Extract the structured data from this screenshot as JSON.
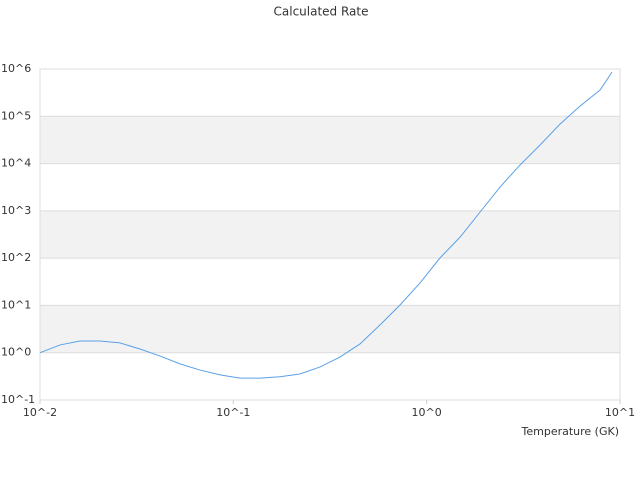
{
  "chart_data": {
    "type": "line",
    "title": "Calculated Rate",
    "x_label": "Temperature (GK)",
    "x_scale": "log",
    "y_scale": "log",
    "xlim": [
      0.01,
      10
    ],
    "ylim": [
      0.1,
      1000000
    ],
    "xticks": [
      {
        "value": 0.01,
        "label": "10^-2"
      },
      {
        "value": 0.1,
        "label": "10^-1"
      },
      {
        "value": 1,
        "label": "10^0"
      },
      {
        "value": 10,
        "label": "10^1"
      }
    ],
    "yticks": [
      {
        "value": 0.1,
        "label": "10^-1"
      },
      {
        "value": 1,
        "label": "10^0"
      },
      {
        "value": 10,
        "label": "10^1"
      },
      {
        "value": 100,
        "label": "10^2"
      },
      {
        "value": 1000,
        "label": "10^3"
      },
      {
        "value": 10000,
        "label": "10^4"
      },
      {
        "value": 100000,
        "label": "10^5"
      },
      {
        "value": 1000000,
        "label": "10^6"
      }
    ],
    "grid": true,
    "x": [
      0.01,
      0.0127,
      0.0161,
      0.0204,
      0.0259,
      0.0329,
      0.0418,
      0.053,
      0.0673,
      0.0854,
      0.108,
      0.137,
      0.174,
      0.221,
      0.281,
      0.356,
      0.452,
      0.574,
      0.728,
      0.924,
      1.17,
      1.49,
      1.89,
      2.4,
      3.04,
      3.86,
      4.9,
      6.22,
      7.89,
      9.1
    ],
    "series": [
      {
        "color": "#5aa0e8",
        "values": [
          1.0,
          1.46,
          1.77,
          1.77,
          1.61,
          1.2,
          0.85,
          0.58,
          0.43,
          0.34,
          0.29,
          0.29,
          0.31,
          0.355,
          0.5,
          0.81,
          1.53,
          3.87,
          10.2,
          29.9,
          100,
          280,
          946,
          3200,
          9340,
          24700,
          68700,
          165000,
          360000,
          865000
        ]
      }
    ]
  }
}
